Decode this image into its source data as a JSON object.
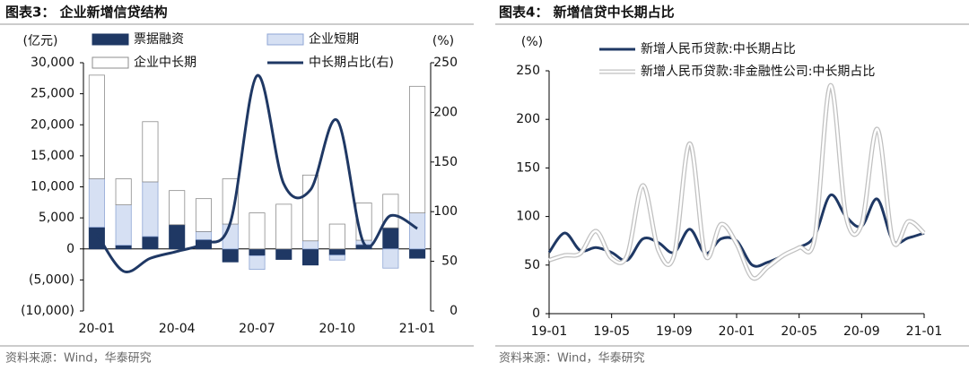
{
  "chart_data": [
    {
      "type": "bar",
      "title": "图表3：  企业新增信贷结构",
      "source": "资料来源：Wind，华泰研究",
      "y_label": "(亿元)",
      "y2_label": "(%)",
      "stacked": true,
      "categories": [
        "20-01",
        null,
        null,
        "20-04",
        null,
        null,
        "20-07",
        null,
        null,
        "20-10",
        null,
        null,
        "21-01"
      ],
      "series": [
        {
          "name": "票据融资",
          "color": "#1f3864",
          "values": [
            3500,
            600,
            2000,
            3900,
            1500,
            -2100,
            -1100,
            -1700,
            -2600,
            -1000,
            700,
            3400,
            -1500
          ]
        },
        {
          "name": "企业短期",
          "color": "#d6e0f3",
          "values": [
            7800,
            6500,
            8800,
            0,
            1300,
            4000,
            -2200,
            0,
            1300,
            -800,
            700,
            -3100,
            5800
          ]
        },
        {
          "name": "企业中长期",
          "color": "#ffffff",
          "values": [
            16700,
            4200,
            9700,
            5500,
            5300,
            7300,
            5800,
            7200,
            10600,
            4000,
            6000,
            5400,
            20400
          ]
        },
        {
          "name": "中长期占比(右)",
          "type": "line",
          "axis": "y2",
          "color": "#1f3864",
          "values": [
            78,
            40,
            53,
            60,
            68,
            89,
            237,
            128,
            122,
            192,
            68,
            96,
            83
          ]
        }
      ],
      "ylim": [
        -10000,
        30000
      ],
      "yticks": [
        {
          "value": 30000,
          "label": "30,000"
        },
        {
          "value": 25000,
          "label": "25,000"
        },
        {
          "value": 20000,
          "label": "20,000"
        },
        {
          "value": 15000,
          "label": "15,000"
        },
        {
          "value": 10000,
          "label": "10,000"
        },
        {
          "value": 5000,
          "label": "5,000"
        },
        0,
        {
          "value": -5000,
          "label": "(5,000)"
        },
        {
          "value": -10000,
          "label": "(10,000)"
        }
      ],
      "y2lim": [
        0,
        250
      ],
      "y2ticks": [
        0,
        50,
        100,
        150,
        200,
        250
      ]
    },
    {
      "type": "line",
      "title": "图表4：  新增信贷中长期占比",
      "source": "资料来源：Wind，华泰研究",
      "y_label": "(%)",
      "categories": [
        "19-01",
        null,
        null,
        null,
        "19-05",
        null,
        null,
        null,
        "19-09",
        null,
        null,
        null,
        "20-01",
        null,
        null,
        null,
        "20-05",
        null,
        null,
        null,
        "20-09",
        null,
        null,
        null,
        "21-01"
      ],
      "series": [
        {
          "name": "新增人民币贷款:中长期占比",
          "color": "#1f3864",
          "values": [
            63,
            83,
            65,
            68,
            63,
            55,
            77,
            73,
            63,
            87,
            62,
            77,
            75,
            50,
            53,
            60,
            68,
            80,
            122,
            100,
            90,
            118,
            75,
            78,
            83
          ]
        },
        {
          "name": "新增人民币贷款:非金融性公司:中长期占比",
          "color": "#c0c0c0",
          "double": true,
          "values": [
            55,
            60,
            62,
            85,
            57,
            60,
            132,
            65,
            60,
            175,
            60,
            92,
            72,
            37,
            48,
            60,
            68,
            78,
            235,
            100,
            92,
            190,
            75,
            95,
            83
          ]
        }
      ],
      "ylim": [
        0,
        250
      ],
      "yticks": [
        0,
        50,
        100,
        150,
        200,
        250
      ]
    }
  ]
}
